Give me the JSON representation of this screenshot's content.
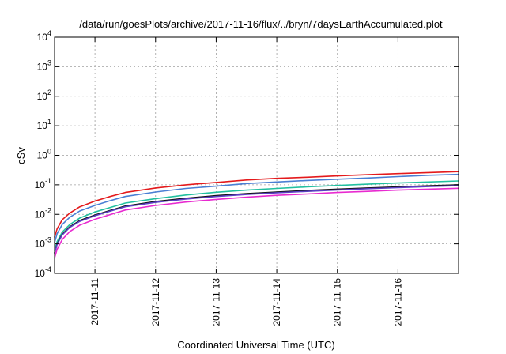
{
  "chart_data": {
    "type": "line",
    "title": "/data/run/goesPlots/archive/2017-11-16/flux/../bryn/7daysEarthAccumulated.plot",
    "xlabel": "Coordinated Universal Time (UTC)",
    "ylabel": "cSv",
    "y_scale": "log",
    "ylim": [
      0.0001,
      10000
    ],
    "y_ticks": [
      {
        "base": "10",
        "exp": "4",
        "value": 10000
      },
      {
        "base": "10",
        "exp": "3",
        "value": 1000
      },
      {
        "base": "10",
        "exp": "2",
        "value": 100
      },
      {
        "base": "10",
        "exp": "1",
        "value": 10
      },
      {
        "base": "10",
        "exp": "0",
        "value": 1
      },
      {
        "base": "10",
        "exp": "-1",
        "value": 0.1
      },
      {
        "base": "10",
        "exp": "-2",
        "value": 0.01
      },
      {
        "base": "10",
        "exp": "-3",
        "value": 0.001
      },
      {
        "base": "10",
        "exp": "-4",
        "value": 0.0001
      }
    ],
    "xlim": [
      "2017-11-10 08:00",
      "2017-11-16 23:59"
    ],
    "x_ticks": [
      {
        "label": "2017-11-11",
        "value": "2017-11-11"
      },
      {
        "label": "2017-11-12",
        "value": "2017-11-12"
      },
      {
        "label": "2017-11-13",
        "value": "2017-11-13"
      },
      {
        "label": "2017-11-14",
        "value": "2017-11-14"
      },
      {
        "label": "2017-11-15",
        "value": "2017-11-15"
      },
      {
        "label": "2017-11-16",
        "value": "2017-11-16"
      }
    ],
    "grid": true,
    "x": [
      "2017-11-10 08:00",
      "2017-11-10 09:00",
      "2017-11-10 11:00",
      "2017-11-10 14:00",
      "2017-11-10 18:00",
      "2017-11-11 00:00",
      "2017-11-11 06:00",
      "2017-11-11 12:00",
      "2017-11-12 00:00",
      "2017-11-12 12:00",
      "2017-11-13 00:00",
      "2017-11-13 12:00",
      "2017-11-14 00:00",
      "2017-11-14 12:00",
      "2017-11-15 00:00",
      "2017-11-15 12:00",
      "2017-11-16 00:00",
      "2017-11-16 12:00",
      "2017-11-16 23:59"
    ],
    "series": [
      {
        "color": "#e41a1c",
        "values": [
          0.0017,
          0.0032,
          0.0065,
          0.011,
          0.018,
          0.028,
          0.04,
          0.055,
          0.078,
          0.1,
          0.12,
          0.145,
          0.165,
          0.18,
          0.2,
          0.22,
          0.24,
          0.26,
          0.28
        ]
      },
      {
        "color": "#4a7fd4",
        "values": [
          0.0011,
          0.0022,
          0.0045,
          0.008,
          0.013,
          0.02,
          0.029,
          0.04,
          0.057,
          0.075,
          0.09,
          0.11,
          0.125,
          0.14,
          0.155,
          0.17,
          0.19,
          0.21,
          0.225
        ]
      },
      {
        "color": "#22c0a0",
        "values": [
          0.0006,
          0.0012,
          0.0025,
          0.0045,
          0.0075,
          0.012,
          0.017,
          0.024,
          0.034,
          0.045,
          0.056,
          0.066,
          0.075,
          0.085,
          0.095,
          0.105,
          0.115,
          0.125,
          0.135
        ]
      },
      {
        "color": "#111111",
        "values": [
          0.0005,
          0.001,
          0.0021,
          0.0038,
          0.0062,
          0.0095,
          0.0135,
          0.019,
          0.027,
          0.035,
          0.043,
          0.05,
          0.057,
          0.064,
          0.071,
          0.078,
          0.085,
          0.092,
          0.1
        ]
      },
      {
        "color": "#5b3fc4",
        "values": [
          0.00048,
          0.00095,
          0.002,
          0.0036,
          0.0058,
          0.009,
          0.0128,
          0.018,
          0.0255,
          0.033,
          0.04,
          0.047,
          0.054,
          0.06,
          0.067,
          0.074,
          0.08,
          0.087,
          0.094
        ]
      },
      {
        "color": "#e82ad0",
        "values": [
          0.00033,
          0.00065,
          0.0014,
          0.0026,
          0.0043,
          0.0068,
          0.0098,
          0.014,
          0.02,
          0.026,
          0.032,
          0.038,
          0.044,
          0.049,
          0.055,
          0.06,
          0.066,
          0.071,
          0.076
        ]
      }
    ]
  }
}
